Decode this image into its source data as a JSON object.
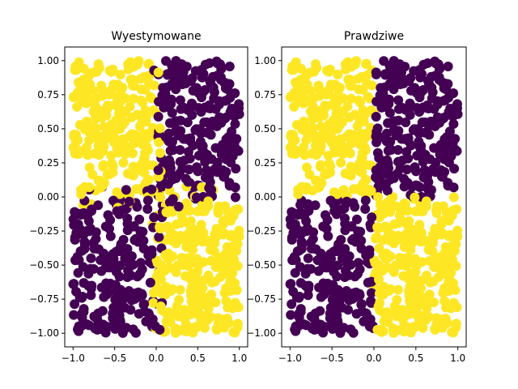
{
  "chart_data": [
    {
      "type": "scatter",
      "title": "Wyestymowane",
      "xlim": [
        -1.1,
        1.1
      ],
      "ylim": [
        -1.1,
        1.1
      ],
      "xticks": [
        "−1.0",
        "−0.5",
        "0.0",
        "0.5",
        "1.0"
      ],
      "yticks": [
        "−1.00",
        "−0.75",
        "−0.50",
        "−0.25",
        "0.00",
        "0.25",
        "0.50",
        "0.75",
        "1.00"
      ],
      "xtick_values": [
        -1.0,
        -0.5,
        0.0,
        0.5,
        1.0
      ],
      "ytick_values": [
        -1.0,
        -0.75,
        -0.5,
        -0.25,
        0.0,
        0.25,
        0.5,
        0.75,
        1.0
      ],
      "x_domain": [
        -1,
        1
      ],
      "y_domain": [
        -1,
        1
      ],
      "n_points": 1000,
      "class_rule": "x*y < 0 → class 1, otherwise class 0; points near the boundary (0.0, 0.0 quadrant edges) occasionally mislabeled",
      "class_colors": {
        "0": "#440154",
        "1": "#fde725"
      },
      "grid": false,
      "legend": null
    },
    {
      "type": "scatter",
      "title": "Prawdziwe",
      "xlim": [
        -1.1,
        1.1
      ],
      "ylim": [
        -1.1,
        1.1
      ],
      "xticks": [
        "−1.0",
        "−0.5",
        "0.0",
        "0.5",
        "1.0"
      ],
      "yticks": [
        "−1.00",
        "−0.75",
        "−0.50",
        "−0.25",
        "0.00",
        "0.25",
        "0.50",
        "0.75",
        "1.00"
      ],
      "xtick_values": [
        -1.0,
        -0.5,
        0.0,
        0.5,
        1.0
      ],
      "ytick_values": [
        -1.0,
        -0.75,
        -0.5,
        -0.25,
        0.0,
        0.25,
        0.5,
        0.75,
        1.0
      ],
      "x_domain": [
        -1,
        1
      ],
      "y_domain": [
        -1,
        1
      ],
      "n_points": 1000,
      "class_rule": "x*y < 0 → class 1, otherwise class 0",
      "class_colors": {
        "0": "#440154",
        "1": "#fde725"
      },
      "grid": false,
      "legend": null
    }
  ]
}
